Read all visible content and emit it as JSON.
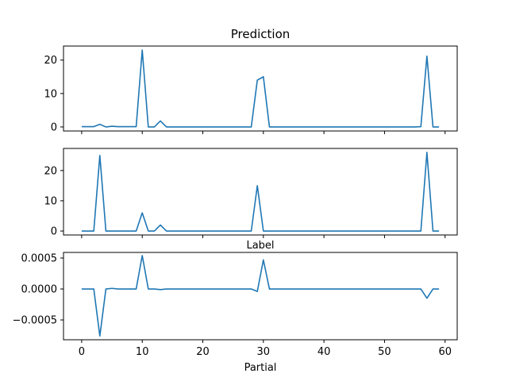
{
  "chart_data": [
    {
      "type": "line",
      "title": "Prediction",
      "xlabel": "",
      "ylabel": "",
      "xlim": [
        -3,
        62
      ],
      "ylim": [
        -1.2,
        24.2
      ],
      "x_ticks": [
        0,
        10,
        20,
        30,
        40,
        50,
        60
      ],
      "x_tick_labels_visible": false,
      "y_ticks": [
        0,
        10,
        20
      ],
      "y_tick_labels": [
        "0",
        "10",
        "20"
      ],
      "grid": false,
      "color": "#1f77b4",
      "x": [
        0,
        1,
        2,
        3,
        4,
        5,
        6,
        7,
        8,
        9,
        10,
        11,
        12,
        13,
        14,
        15,
        16,
        17,
        18,
        19,
        20,
        21,
        22,
        23,
        24,
        25,
        26,
        27,
        28,
        29,
        30,
        31,
        32,
        33,
        34,
        35,
        36,
        37,
        38,
        39,
        40,
        41,
        42,
        43,
        44,
        45,
        46,
        47,
        48,
        49,
        50,
        51,
        52,
        53,
        54,
        55,
        56,
        57,
        58,
        59
      ],
      "y": [
        0.1,
        0.1,
        0.1,
        0.8,
        0.0,
        0.2,
        0.1,
        0.1,
        0.1,
        0.1,
        23.0,
        0.0,
        0.0,
        1.8,
        0.0,
        0.0,
        0.0,
        0.0,
        0.0,
        0.0,
        0.0,
        0.0,
        0.0,
        0.0,
        0.0,
        0.0,
        0.0,
        0.0,
        0.0,
        14.0,
        15.0,
        0.0,
        0.0,
        0.0,
        0.0,
        0.0,
        0.0,
        0.0,
        0.0,
        0.0,
        0.0,
        0.0,
        0.0,
        0.0,
        0.0,
        0.0,
        0.0,
        0.0,
        0.0,
        0.0,
        0.0,
        0.0,
        0.0,
        0.0,
        0.0,
        0.0,
        0.1,
        21.2,
        0.0,
        0.0
      ]
    },
    {
      "type": "line",
      "title": "Label",
      "xlabel": "",
      "ylabel": "",
      "xlim": [
        -3,
        62
      ],
      "ylim": [
        -1.3,
        27.3
      ],
      "x_ticks": [
        0,
        10,
        20,
        30,
        40,
        50,
        60
      ],
      "x_tick_labels_visible": false,
      "y_ticks": [
        0,
        10,
        20
      ],
      "y_tick_labels": [
        "0",
        "10",
        "20"
      ],
      "grid": false,
      "color": "#1f77b4",
      "x": [
        0,
        1,
        2,
        3,
        4,
        5,
        6,
        7,
        8,
        9,
        10,
        11,
        12,
        13,
        14,
        15,
        16,
        17,
        18,
        19,
        20,
        21,
        22,
        23,
        24,
        25,
        26,
        27,
        28,
        29,
        30,
        31,
        32,
        33,
        34,
        35,
        36,
        37,
        38,
        39,
        40,
        41,
        42,
        43,
        44,
        45,
        46,
        47,
        48,
        49,
        50,
        51,
        52,
        53,
        54,
        55,
        56,
        57,
        58,
        59
      ],
      "y": [
        0,
        0,
        0,
        25,
        0,
        0,
        0,
        0,
        0,
        0,
        6,
        0,
        0,
        2,
        0,
        0,
        0,
        0,
        0,
        0,
        0,
        0,
        0,
        0,
        0,
        0,
        0,
        0,
        0,
        15,
        0,
        0,
        0,
        0,
        0,
        0,
        0,
        0,
        0,
        0,
        0,
        0,
        0,
        0,
        0,
        0,
        0,
        0,
        0,
        0,
        0,
        0,
        0,
        0,
        0,
        0,
        0,
        26,
        0,
        0
      ]
    },
    {
      "type": "line",
      "title": "",
      "xlabel": "Partial",
      "ylabel": "",
      "xlim": [
        -3,
        62
      ],
      "ylim": [
        -0.00082,
        0.00059
      ],
      "x_ticks": [
        0,
        10,
        20,
        30,
        40,
        50,
        60
      ],
      "x_tick_labels": [
        "0",
        "10",
        "20",
        "30",
        "40",
        "50",
        "60"
      ],
      "x_tick_labels_visible": true,
      "y_ticks": [
        0.0005,
        0.0,
        -0.0005
      ],
      "y_tick_labels": [
        "0.0005",
        "0.0000",
        "−0.0005"
      ],
      "grid": false,
      "color": "#1f77b4",
      "x": [
        0,
        1,
        2,
        3,
        4,
        5,
        6,
        7,
        8,
        9,
        10,
        11,
        12,
        13,
        14,
        15,
        16,
        17,
        18,
        19,
        20,
        21,
        22,
        23,
        24,
        25,
        26,
        27,
        28,
        29,
        30,
        31,
        32,
        33,
        34,
        35,
        36,
        37,
        38,
        39,
        40,
        41,
        42,
        43,
        44,
        45,
        46,
        47,
        48,
        49,
        50,
        51,
        52,
        53,
        54,
        55,
        56,
        57,
        58,
        59
      ],
      "y": [
        0,
        0,
        0,
        -0.00076,
        0.0,
        1e-05,
        0.0,
        0.0,
        0.0,
        0.0,
        0.00054,
        0.0,
        0.0,
        -1e-05,
        0.0,
        0.0,
        0.0,
        0.0,
        0.0,
        0.0,
        0.0,
        0.0,
        0.0,
        0.0,
        0.0,
        0.0,
        0.0,
        0.0,
        0.0,
        -4e-05,
        0.00047,
        0.0,
        0.0,
        0.0,
        0.0,
        0.0,
        0.0,
        0.0,
        0.0,
        0.0,
        0.0,
        0.0,
        0.0,
        0.0,
        0.0,
        0.0,
        0.0,
        0.0,
        0.0,
        0.0,
        0.0,
        0.0,
        0.0,
        0.0,
        0.0,
        0.0,
        0.0,
        -0.00015,
        0.0,
        0.0
      ]
    }
  ]
}
